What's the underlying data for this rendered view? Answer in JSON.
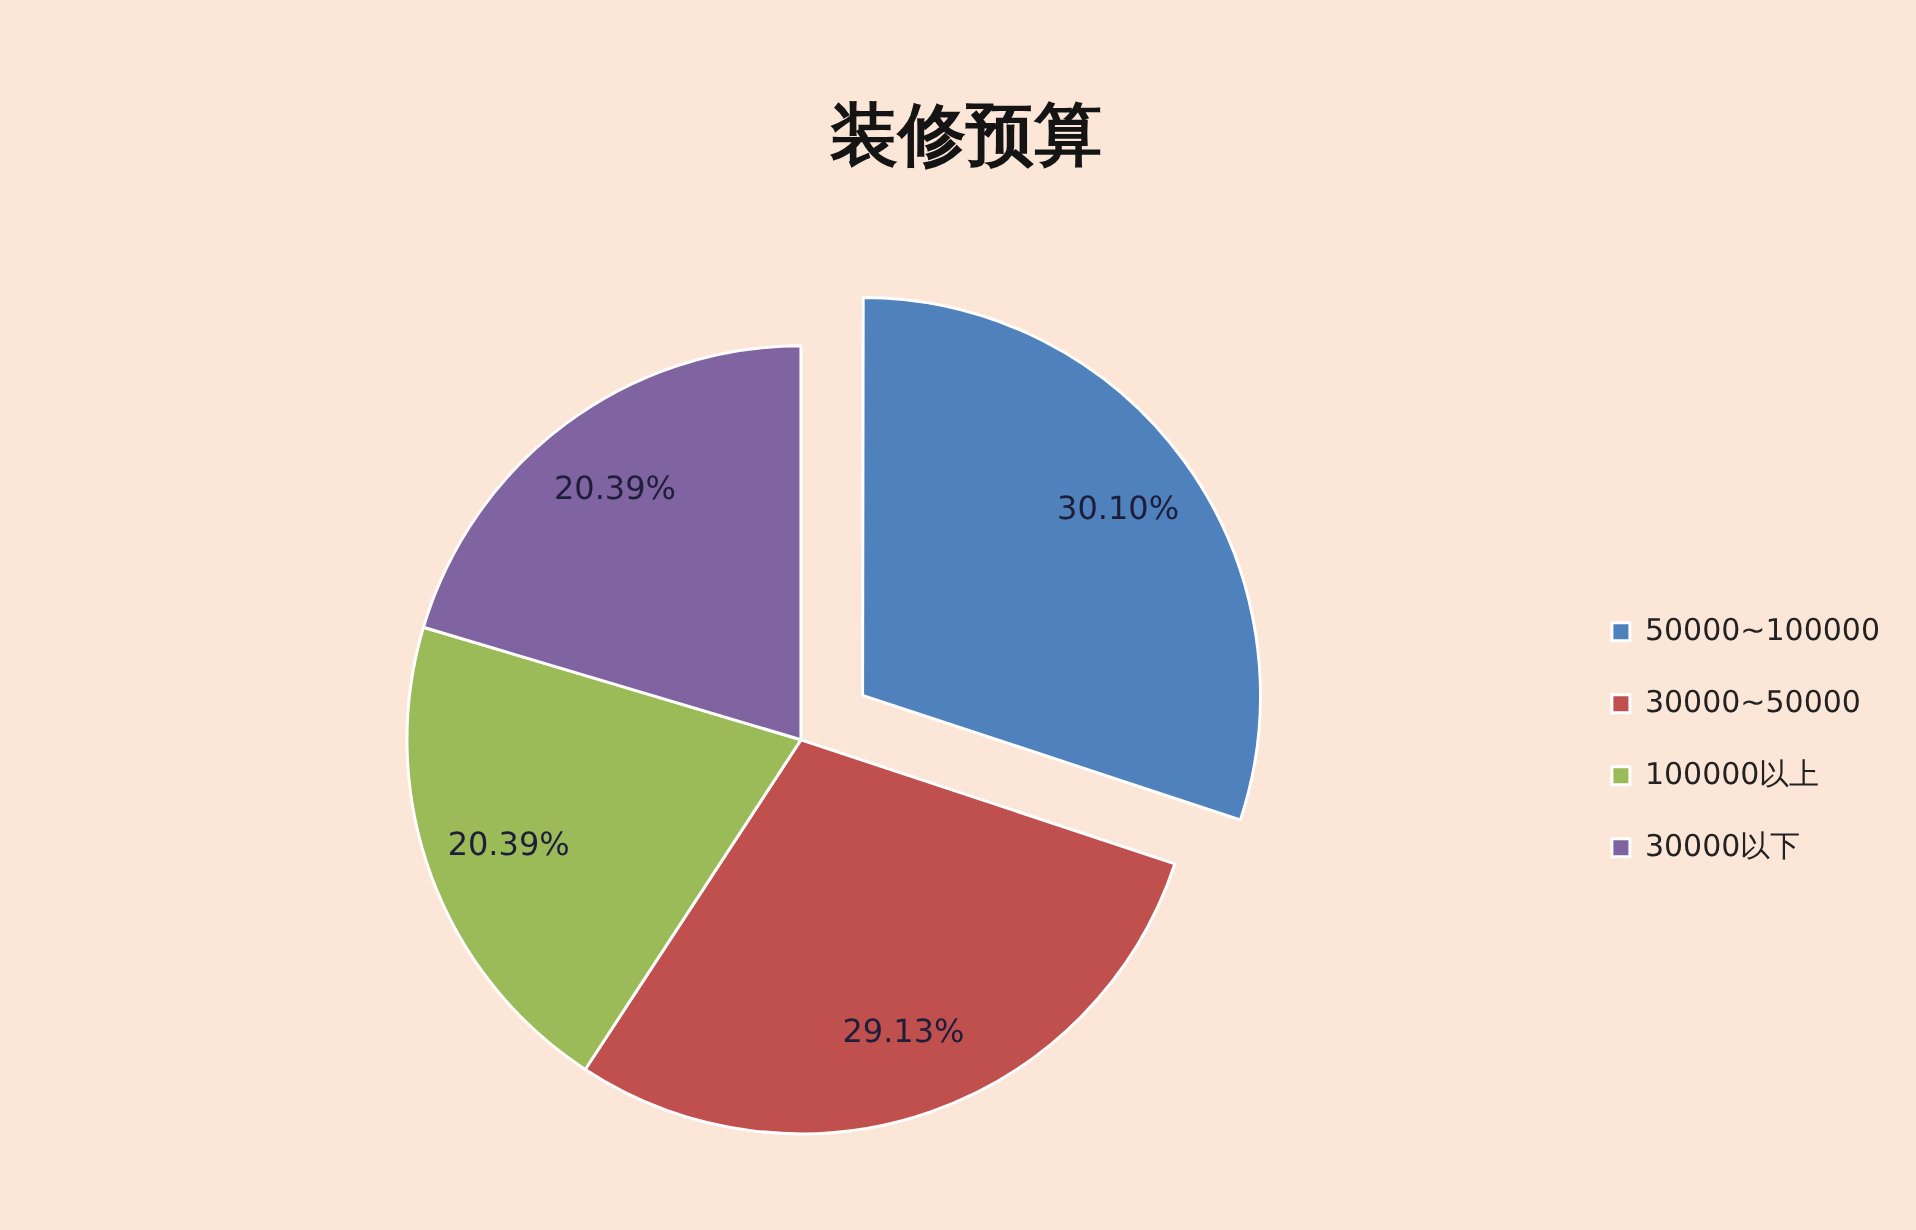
{
  "chart_data": {
    "type": "pie",
    "title": "装修预算",
    "categories": [
      "50000~100000",
      "30000~50000",
      "100000以上",
      "30000以下"
    ],
    "values": [
      30.1,
      29.13,
      20.39,
      20.39
    ],
    "colors": [
      "#4f81bd",
      "#c0504d",
      "#9bbb59",
      "#8064a2"
    ],
    "value_labels": [
      "30.10%",
      "29.13%",
      "20.39%",
      "20.39%"
    ],
    "legend": "right"
  }
}
